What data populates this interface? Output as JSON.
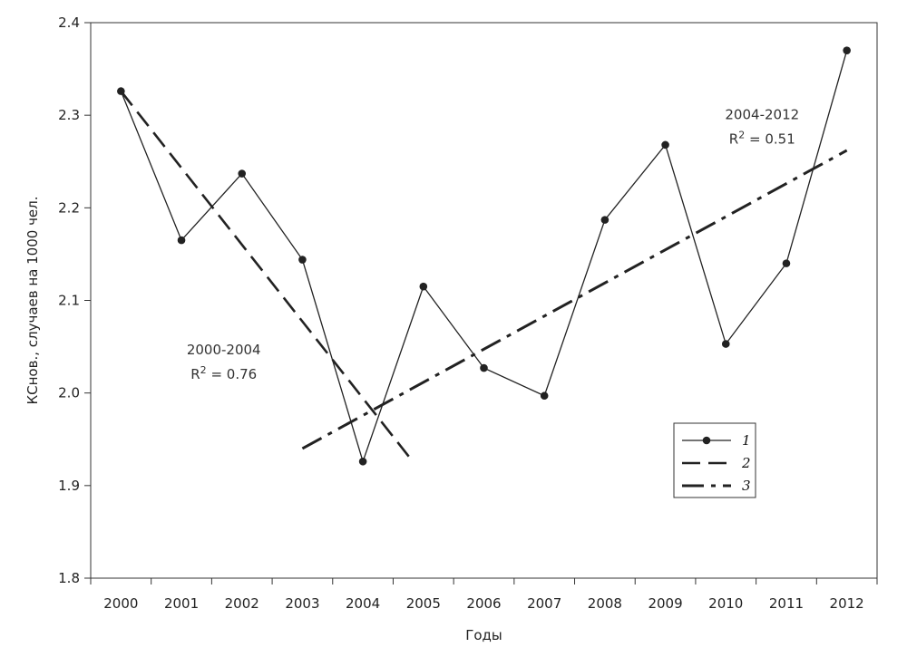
{
  "chart_data": {
    "type": "line",
    "title": "",
    "xlabel": "Годы",
    "ylabel": "КСнов., случаев на 1000 чел.",
    "ylim": [
      1.8,
      2.4
    ],
    "yticks": [
      "1.8",
      "1.9",
      "2.0",
      "2.1",
      "2.2",
      "2.3",
      "2.4"
    ],
    "categories": [
      "2000",
      "2001",
      "2002",
      "2003",
      "2004",
      "2005",
      "2006",
      "2007",
      "2008",
      "2009",
      "2010",
      "2011",
      "2012"
    ],
    "grid": false,
    "legend_position": "bottom-right",
    "series": [
      {
        "name": "1",
        "style": "solid-markers",
        "x": [
          "2000",
          "2001",
          "2002",
          "2003",
          "2004",
          "2005",
          "2006",
          "2007",
          "2008",
          "2009",
          "2010",
          "2011",
          "2012"
        ],
        "values": [
          2.326,
          2.165,
          2.237,
          2.144,
          1.926,
          2.115,
          2.027,
          1.997,
          2.187,
          2.268,
          2.053,
          2.14,
          2.37
        ]
      },
      {
        "name": "2",
        "style": "dashed",
        "trend_from": [
          2000,
          2.326
        ],
        "trend_to": [
          2004.8,
          1.928
        ]
      },
      {
        "name": "3",
        "style": "dash-dot",
        "trend_from": [
          2003,
          1.94
        ],
        "trend_to": [
          2012,
          2.262
        ]
      }
    ],
    "annotations": [
      {
        "line1": "2000-2004",
        "line2_prefix": "R",
        "line2_sup": "2",
        "line2_suffix": " = 0.76",
        "at": [
          2001.7,
          2.042
        ]
      },
      {
        "line1": "2004-2012",
        "line2_prefix": "R",
        "line2_sup": "2",
        "line2_suffix": " = 0.51",
        "at": [
          2010.6,
          2.296
        ]
      }
    ],
    "colors": {
      "line": "#222222",
      "axis": "#333333",
      "background": "#ffffff"
    }
  }
}
